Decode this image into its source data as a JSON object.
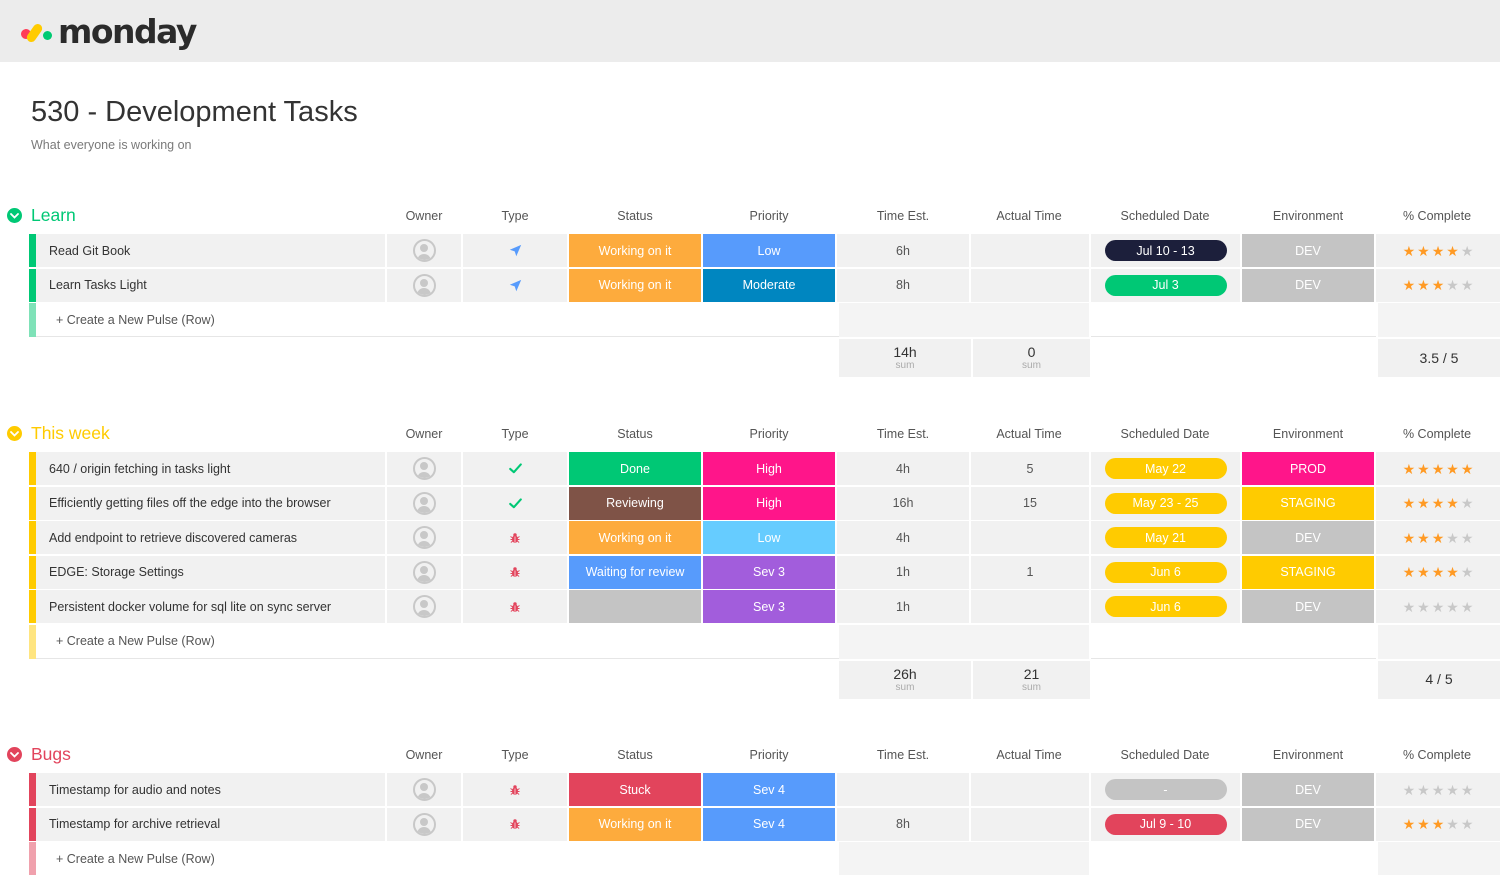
{
  "app": {
    "logo_text": "monday",
    "logo_colors": [
      "#ff3d57",
      "#ffcb00",
      "#00ca72"
    ]
  },
  "board": {
    "title": "530 - Development Tasks",
    "description": "What everyone is working on"
  },
  "columns": [
    "Owner",
    "Type",
    "Status",
    "Priority",
    "Time Est.",
    "Actual Time",
    "Scheduled Date",
    "Environment",
    "% Complete"
  ],
  "create_row_label": "+ Create a New Pulse (Row)",
  "sum_label": "sum",
  "groups": [
    {
      "title": "Learn",
      "color": "#00c875",
      "light_color": "#7fe2b8",
      "rows": [
        {
          "name": "Read Git Book",
          "type": "rocket-icon",
          "status": "Working on it",
          "status_color": "#fdab3d",
          "priority": "Low",
          "priority_color": "#579bfc",
          "time_est": "6h",
          "actual": "",
          "date": "Jul 10 - 13",
          "date_color": "#1c1f3b",
          "env": "DEV",
          "env_color": "#c4c4c4",
          "rating": 4
        },
        {
          "name": "Learn Tasks Light",
          "type": "rocket-icon",
          "status": "Working on it",
          "status_color": "#fdab3d",
          "priority": "Moderate",
          "priority_color": "#0086c0",
          "time_est": "8h",
          "actual": "",
          "date": "Jul 3",
          "date_color": "#00c875",
          "env": "DEV",
          "env_color": "#c4c4c4",
          "rating": 3
        }
      ],
      "sum_time_est": "14h",
      "sum_actual": "0",
      "sum_complete": "3.5 / 5"
    },
    {
      "title": "This week",
      "color": "#ffcb00",
      "light_color": "#ffe580",
      "rows": [
        {
          "name": "640 / origin fetching in tasks light",
          "type": "check-icon",
          "status": "Done",
          "status_color": "#00c875",
          "priority": "High",
          "priority_color": "#ff158a",
          "time_est": "4h",
          "actual": "5",
          "date": "May 22",
          "date_color": "#ffcb00",
          "env": "PROD",
          "env_color": "#ff158a",
          "rating": 5
        },
        {
          "name": "Efficiently getting files off the edge into the browser",
          "type": "check-icon",
          "status": "Reviewing",
          "status_color": "#7f5347",
          "priority": "High",
          "priority_color": "#ff158a",
          "time_est": "16h",
          "actual": "15",
          "date": "May 23 - 25",
          "date_color": "#ffcb00",
          "env": "STAGING",
          "env_color": "#ffcb00",
          "rating": 4
        },
        {
          "name": "Add endpoint to retrieve discovered cameras",
          "type": "bug-icon",
          "status": "Working on it",
          "status_color": "#fdab3d",
          "priority": "Low",
          "priority_color": "#66ccff",
          "time_est": "4h",
          "actual": "",
          "date": "May 21",
          "date_color": "#ffcb00",
          "env": "DEV",
          "env_color": "#c4c4c4",
          "rating": 3
        },
        {
          "name": "EDGE: Storage Settings",
          "type": "bug-icon",
          "status": "Waiting for review",
          "status_color": "#579bfc",
          "priority": "Sev 3",
          "priority_color": "#a25ddc",
          "time_est": "1h",
          "actual": "1",
          "date": "Jun 6",
          "date_color": "#ffcb00",
          "env": "STAGING",
          "env_color": "#ffcb00",
          "rating": 4
        },
        {
          "name": "Persistent docker volume for sql lite on sync server",
          "type": "bug-icon",
          "status": "",
          "status_color": "#c4c4c4",
          "priority": "Sev 3",
          "priority_color": "#a25ddc",
          "time_est": "1h",
          "actual": "",
          "date": "Jun 6",
          "date_color": "#ffcb00",
          "env": "DEV",
          "env_color": "#c4c4c4",
          "rating": 0
        }
      ],
      "sum_time_est": "26h",
      "sum_actual": "21",
      "sum_complete": "4 / 5"
    },
    {
      "title": "Bugs",
      "color": "#e2445c",
      "light_color": "#f0a1ad",
      "rows": [
        {
          "name": "Timestamp for audio and notes",
          "type": "bug-icon",
          "status": "Stuck",
          "status_color": "#e2445c",
          "priority": "Sev 4",
          "priority_color": "#579bfc",
          "time_est": "",
          "actual": "",
          "date": "-",
          "date_color": "#c4c4c4",
          "env": "DEV",
          "env_color": "#c4c4c4",
          "rating": 0
        },
        {
          "name": "Timestamp for archive retrieval",
          "type": "bug-icon",
          "status": "Working on it",
          "status_color": "#fdab3d",
          "priority": "Sev 4",
          "priority_color": "#579bfc",
          "time_est": "8h",
          "actual": "",
          "date": "Jul 9 - 10",
          "date_color": "#e2445c",
          "env": "DEV",
          "env_color": "#c4c4c4",
          "rating": 3
        }
      ]
    }
  ]
}
